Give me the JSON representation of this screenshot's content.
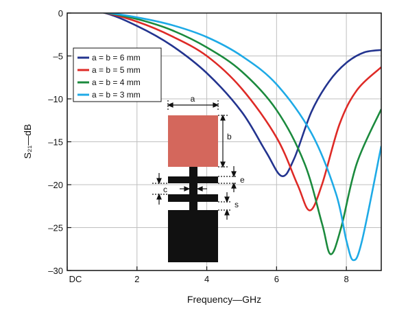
{
  "chart_data": {
    "type": "line",
    "xlabel": "Frequency—GHz",
    "ylabel": "S₂₁—dB",
    "xlim": [
      0,
      9
    ],
    "ylim": [
      -30,
      0
    ],
    "x_ticks": [
      {
        "value": 0,
        "label": "DC"
      },
      {
        "value": 2,
        "label": "2"
      },
      {
        "value": 4,
        "label": "4"
      },
      {
        "value": 6,
        "label": "6"
      },
      {
        "value": 8,
        "label": "8"
      }
    ],
    "y_ticks": [
      {
        "value": 0,
        "label": "0"
      },
      {
        "value": -5,
        "label": "–5"
      },
      {
        "value": -10,
        "label": "–10"
      },
      {
        "value": -15,
        "label": "–15"
      },
      {
        "value": -20,
        "label": "–20"
      },
      {
        "value": -25,
        "label": "–25"
      },
      {
        "value": -30,
        "label": "–30"
      }
    ],
    "grid": true,
    "legend_position": "top-left",
    "series": [
      {
        "name": "a = b = 6 mm",
        "color": "#23348f",
        "points": [
          [
            0,
            0.4
          ],
          [
            1,
            0.1
          ],
          [
            2,
            -1.5
          ],
          [
            3,
            -3.8
          ],
          [
            4,
            -7.0
          ],
          [
            5,
            -11.5
          ],
          [
            5.7,
            -16.2
          ],
          [
            6.15,
            -19.0
          ],
          [
            6.5,
            -17.0
          ],
          [
            7,
            -11.5
          ],
          [
            7.5,
            -8.0
          ],
          [
            8,
            -5.8
          ],
          [
            8.5,
            -4.6
          ],
          [
            9,
            -4.3
          ]
        ]
      },
      {
        "name": "a = b = 5 mm",
        "color": "#de2a26",
        "points": [
          [
            0,
            0.4
          ],
          [
            1,
            0.1
          ],
          [
            2,
            -1.0
          ],
          [
            3,
            -2.7
          ],
          [
            4,
            -5.0
          ],
          [
            5,
            -8.8
          ],
          [
            6,
            -14.5
          ],
          [
            6.6,
            -20.0
          ],
          [
            6.95,
            -23.0
          ],
          [
            7.3,
            -20.0
          ],
          [
            7.8,
            -13.0
          ],
          [
            8.3,
            -9.0
          ],
          [
            9,
            -6.3
          ]
        ]
      },
      {
        "name": "a = b = 4 mm",
        "color": "#1b8a3d",
        "points": [
          [
            0,
            0.4
          ],
          [
            1,
            0.1
          ],
          [
            2,
            -0.7
          ],
          [
            3,
            -2.0
          ],
          [
            4,
            -4.0
          ],
          [
            5,
            -6.8
          ],
          [
            6,
            -11.3
          ],
          [
            6.8,
            -17.5
          ],
          [
            7.3,
            -24.5
          ],
          [
            7.55,
            -28.1
          ],
          [
            7.85,
            -25.0
          ],
          [
            8.3,
            -17.5
          ],
          [
            9,
            -11.2
          ]
        ]
      },
      {
        "name": "a = b = 3 mm",
        "color": "#1eaae6",
        "points": [
          [
            0,
            0.4
          ],
          [
            1,
            0.1
          ],
          [
            2,
            -0.5
          ],
          [
            3,
            -1.4
          ],
          [
            4,
            -2.8
          ],
          [
            5,
            -5.0
          ],
          [
            6,
            -8.3
          ],
          [
            7,
            -14.0
          ],
          [
            7.7,
            -21.0
          ],
          [
            8.0,
            -26.5
          ],
          [
            8.2,
            -28.8
          ],
          [
            8.45,
            -26.5
          ],
          [
            9,
            -15.5
          ]
        ]
      }
    ],
    "diagram_labels": {
      "a": "a",
      "b": "b",
      "c": "c",
      "e": "e",
      "s": "s"
    }
  }
}
